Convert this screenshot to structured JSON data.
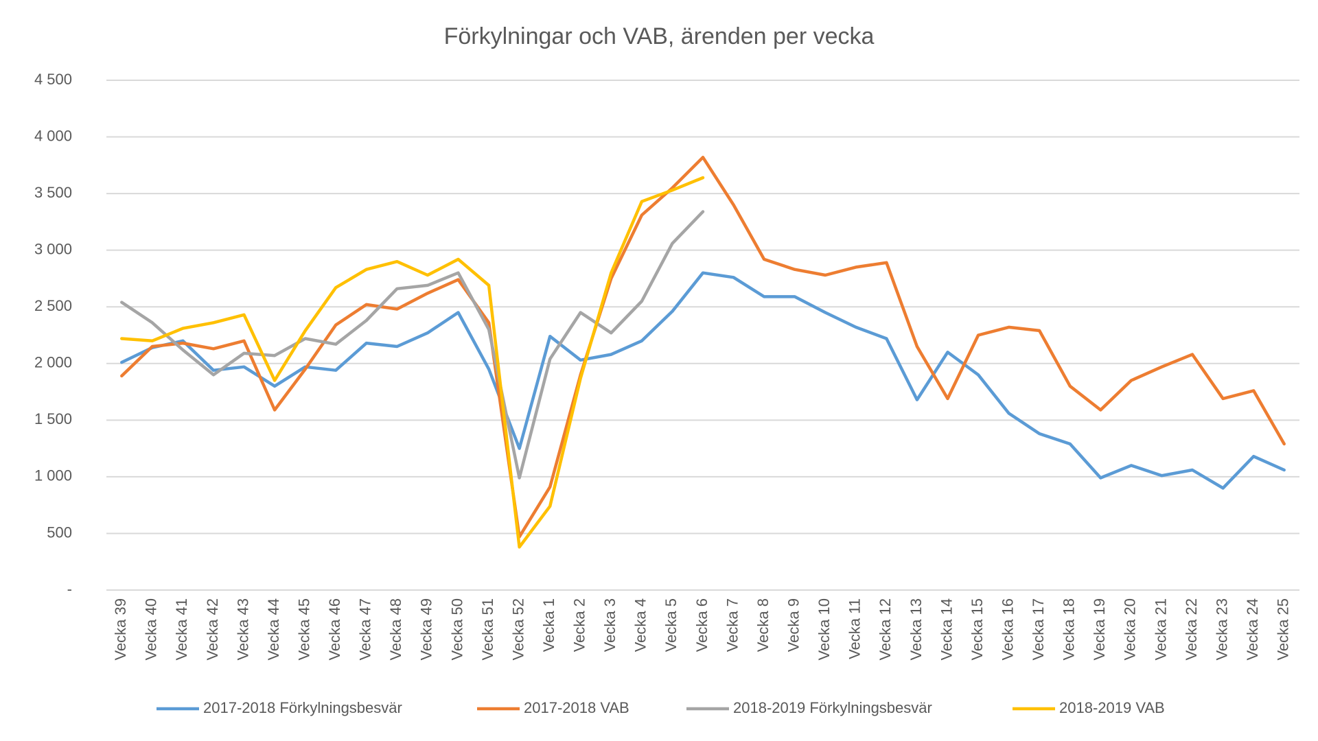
{
  "chart_data": {
    "type": "line",
    "title": "Förkylningar och VAB, ärenden per vecka",
    "categories": [
      "Vecka 39",
      "Vecka 40",
      "Vecka 41",
      "Vecka 42",
      "Vecka 43",
      "Vecka 44",
      "Vecka 45",
      "Vecka 46",
      "Vecka 47",
      "Vecka 48",
      "Vecka 49",
      "Vecka 50",
      "Vecka 51",
      "Vecka 52",
      "Vecka 1",
      "Vecka 2",
      "Vecka 3",
      "Vecka 4",
      "Vecka 5",
      "Vecka 6",
      "Vecka 7",
      "Vecka 8",
      "Vecka 9",
      "Vecka 10",
      "Vecka 11",
      "Vecka 12",
      "Vecka 13",
      "Vecka 14",
      "Vecka 15",
      "Vecka 16",
      "Vecka 17",
      "Vecka 18",
      "Vecka 19",
      "Vecka 20",
      "Vecka 21",
      "Vecka 22",
      "Vecka 23",
      "Vecka 24",
      "Vecka 25"
    ],
    "series": [
      {
        "name": "2017-2018 Förkylningsbesvär",
        "color": "#5b9bd5",
        "values": [
          2010,
          2140,
          2200,
          1940,
          1970,
          1800,
          1970,
          1940,
          2180,
          2150,
          2270,
          2450,
          1950,
          1250,
          2240,
          2030,
          2080,
          2200,
          2460,
          2800,
          2760,
          2590,
          2590,
          2450,
          2320,
          2220,
          1680,
          2100,
          1900,
          1560,
          1380,
          1290,
          990,
          1100,
          1010,
          1060,
          900,
          1180,
          1060
        ]
      },
      {
        "name": "2017-2018 VAB",
        "color": "#ed7d31",
        "values": [
          1890,
          2150,
          2180,
          2130,
          2200,
          1590,
          1950,
          2340,
          2520,
          2480,
          2620,
          2740,
          2360,
          470,
          910,
          1900,
          2750,
          3310,
          3550,
          3820,
          3400,
          2920,
          2830,
          2780,
          2850,
          2890,
          2150,
          1690,
          2250,
          2320,
          2290,
          1800,
          1590,
          1850,
          1970,
          2080,
          1690,
          1760,
          1290
        ]
      },
      {
        "name": "2018-2019 Förkylningsbesvär",
        "color": "#a5a5a5",
        "values": [
          2540,
          2360,
          2120,
          1900,
          2090,
          2070,
          2220,
          2170,
          2380,
          2660,
          2690,
          2800,
          2300,
          990,
          2040,
          2450,
          2270,
          2550,
          3060,
          3340,
          null,
          null,
          null,
          null,
          null,
          null,
          null,
          null,
          null,
          null,
          null,
          null,
          null,
          null,
          null,
          null,
          null,
          null,
          null
        ]
      },
      {
        "name": "2018-2019 VAB",
        "color": "#ffc000",
        "values": [
          2220,
          2200,
          2310,
          2360,
          2430,
          1850,
          2290,
          2670,
          2830,
          2900,
          2780,
          2920,
          2690,
          380,
          740,
          1870,
          2800,
          3430,
          3530,
          3640,
          null,
          null,
          null,
          null,
          null,
          null,
          null,
          null,
          null,
          null,
          null,
          null,
          null,
          null,
          null,
          null,
          null,
          null,
          null
        ]
      }
    ],
    "ylim": [
      0,
      4500
    ],
    "yticks": [
      {
        "value": 0,
        "label": "-"
      },
      500,
      {
        "value": 1000,
        "label": "1 000"
      },
      {
        "value": 1500,
        "label": "1 500"
      },
      {
        "value": 2000,
        "label": "2 000"
      },
      {
        "value": 2500,
        "label": "2 500"
      },
      {
        "value": 3000,
        "label": "3 000"
      },
      {
        "value": 3500,
        "label": "3 500"
      },
      {
        "value": 4000,
        "label": "4 000"
      },
      {
        "value": 4500,
        "label": "4 500"
      }
    ],
    "grid": true,
    "legend": "bottom"
  }
}
